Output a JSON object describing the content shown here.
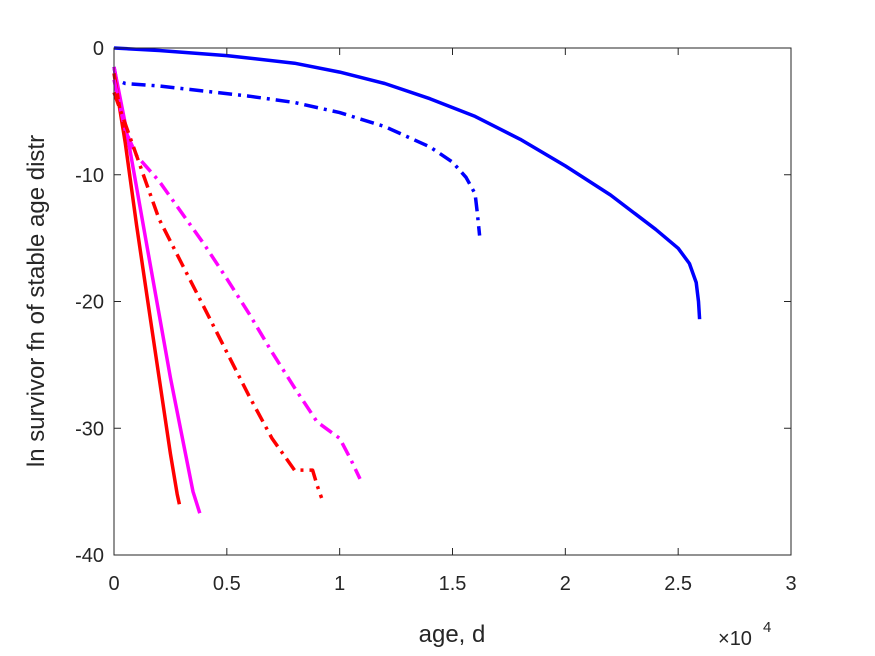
{
  "chart_data": {
    "type": "line",
    "xlabel": "age, d",
    "ylabel": "ln survivor fn of stable age distr",
    "x_exponent_label": {
      "base": "10",
      "exp": "4"
    },
    "xlim": [
      0,
      3
    ],
    "ylim": [
      -40,
      0
    ],
    "x_unit_multiplier": 10000,
    "x_ticks": [
      0,
      0.5,
      1,
      1.5,
      2,
      2.5,
      3
    ],
    "x_tick_labels": [
      "0",
      "0.5",
      "1",
      "1.5",
      "2",
      "2.5",
      "3"
    ],
    "y_ticks": [
      0,
      -10,
      -20,
      -30,
      -40
    ],
    "y_tick_labels": [
      "0",
      "-10",
      "-20",
      "-30",
      "-40"
    ],
    "grid": false,
    "legend": "none",
    "series": [
      {
        "color": "#0000ff",
        "style": "solid",
        "x": [
          0,
          0.2,
          0.5,
          0.8,
          1.0,
          1.2,
          1.4,
          1.6,
          1.8,
          2.0,
          2.2,
          2.4,
          2.5,
          2.55,
          2.58,
          2.59,
          2.595
        ],
        "y": [
          0,
          -0.2,
          -0.6,
          -1.2,
          -1.9,
          -2.8,
          -4.0,
          -5.4,
          -7.2,
          -9.3,
          -11.6,
          -14.3,
          -15.8,
          -17.0,
          -18.5,
          -20.0,
          -21.4
        ]
      },
      {
        "color": "#0000ff",
        "style": "dashdot",
        "x": [
          0,
          0.01,
          0.05,
          0.2,
          0.4,
          0.6,
          0.8,
          1.0,
          1.2,
          1.4,
          1.5,
          1.56,
          1.6,
          1.61,
          1.62
        ],
        "y": [
          -1.5,
          -2.5,
          -2.8,
          -3.0,
          -3.4,
          -3.8,
          -4.3,
          -5.1,
          -6.2,
          -7.8,
          -9.0,
          -10.2,
          -11.5,
          -13.0,
          -14.8
        ]
      },
      {
        "color": "#ff00ff",
        "style": "solid",
        "x": [
          0,
          0.05,
          0.1,
          0.15,
          0.2,
          0.25,
          0.3,
          0.35,
          0.38
        ],
        "y": [
          -1.5,
          -6,
          -11,
          -16,
          -21,
          -26,
          -30.5,
          -35,
          -36.7
        ]
      },
      {
        "color": "#ff0000",
        "style": "solid",
        "x": [
          0,
          0.05,
          0.1,
          0.15,
          0.2,
          0.25,
          0.28,
          0.29
        ],
        "y": [
          -2,
          -7.5,
          -14,
          -20,
          -26,
          -32,
          -35.2,
          -36.0
        ]
      },
      {
        "color": "#ff00ff",
        "style": "dashdot",
        "x": [
          0,
          0.05,
          0.1,
          0.2,
          0.3,
          0.4,
          0.5,
          0.6,
          0.7,
          0.8,
          0.9,
          1.0,
          1.05,
          1.09
        ],
        "y": [
          -2.5,
          -6.5,
          -8.5,
          -10.5,
          -13,
          -15.5,
          -18.2,
          -21,
          -24,
          -26.8,
          -29.5,
          -30.8,
          -32.5,
          -34.0
        ]
      },
      {
        "color": "#ff0000",
        "style": "dashdot",
        "x": [
          0,
          0.05,
          0.1,
          0.15,
          0.2,
          0.3,
          0.4,
          0.5,
          0.6,
          0.7,
          0.8,
          0.84,
          0.88,
          0.9,
          0.92
        ],
        "y": [
          -3.5,
          -6,
          -8.5,
          -11,
          -13.5,
          -17,
          -20.5,
          -24,
          -27.5,
          -30.8,
          -33.3,
          -33.3,
          -33.3,
          -34.5,
          -35.5
        ]
      }
    ]
  }
}
